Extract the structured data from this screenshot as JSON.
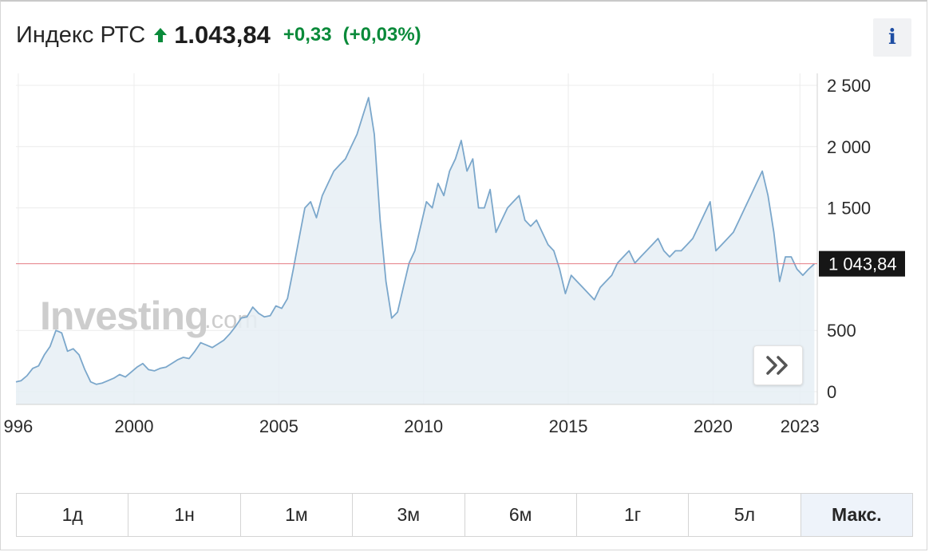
{
  "header": {
    "title": "Индекс РТС",
    "price": "1.043,84",
    "change": "+0,33",
    "change_pct": "(+0,03%)",
    "direction_icon": "arrow-up-icon",
    "up_color": "#0a8a3a"
  },
  "info_button": {
    "label": "i",
    "icon": "info-icon"
  },
  "expand_button": {
    "icon": "double-chevron-right-icon"
  },
  "watermark": {
    "main": "Investing",
    "domain": ".com"
  },
  "chart_data": {
    "type": "area",
    "x_ticks": [
      "996",
      "2000",
      "2005",
      "2010",
      "2015",
      "2020",
      "2023"
    ],
    "y_ticks": [
      0,
      500,
      1500,
      2000,
      2500
    ],
    "y_tick_labels": [
      "0",
      "500",
      "1 500",
      "2 000",
      "2 500"
    ],
    "ylim": [
      0,
      2600
    ],
    "xlim": [
      1995.92,
      2023.6
    ],
    "grid": true,
    "line_color": "#7ba7cb",
    "fill_color": "#e6eef5",
    "current_value": 1043.84,
    "current_value_label": "1 043,84",
    "current_line_color": "#e47d85",
    "series": [
      {
        "x": [
          1995.9,
          1996.1,
          1996.3,
          1996.5,
          1996.7,
          1996.9,
          1997.1,
          1997.3,
          1997.5,
          1997.7,
          1997.9,
          1998.1,
          1998.3,
          1998.5,
          1998.7,
          1998.9,
          1999.1,
          1999.3,
          1999.5,
          1999.7,
          1999.9,
          2000.1,
          2000.3,
          2000.5,
          2000.7,
          2000.9,
          2001.1,
          2001.3,
          2001.5,
          2001.7,
          2001.9,
          2002.1,
          2002.3,
          2002.5,
          2002.7,
          2002.9,
          2003.1,
          2003.3,
          2003.5,
          2003.7,
          2003.9,
          2004.1,
          2004.3,
          2004.5,
          2004.7,
          2004.9,
          2005.1,
          2005.3,
          2005.5,
          2005.7,
          2005.9,
          2006.1,
          2006.3,
          2006.5,
          2006.7,
          2006.9,
          2007.1,
          2007.3,
          2007.5,
          2007.7,
          2007.9,
          2008.1,
          2008.3,
          2008.5,
          2008.7,
          2008.9,
          2009.1,
          2009.3,
          2009.5,
          2009.7,
          2009.9,
          2010.1,
          2010.3,
          2010.5,
          2010.7,
          2010.9,
          2011.1,
          2011.3,
          2011.5,
          2011.7,
          2011.9,
          2012.1,
          2012.3,
          2012.5,
          2012.7,
          2012.9,
          2013.1,
          2013.3,
          2013.5,
          2013.7,
          2013.9,
          2014.1,
          2014.3,
          2014.5,
          2014.7,
          2014.9,
          2015.1,
          2015.3,
          2015.5,
          2015.7,
          2015.9,
          2016.1,
          2016.3,
          2016.5,
          2016.7,
          2016.9,
          2017.1,
          2017.3,
          2017.5,
          2017.7,
          2017.9,
          2018.1,
          2018.3,
          2018.5,
          2018.7,
          2018.9,
          2019.1,
          2019.3,
          2019.5,
          2019.7,
          2019.9,
          2020.1,
          2020.3,
          2020.5,
          2020.7,
          2020.9,
          2021.1,
          2021.3,
          2021.5,
          2021.7,
          2021.9,
          2022.1,
          2022.3,
          2022.5,
          2022.7,
          2022.9,
          2023.1,
          2023.3,
          2023.5
        ],
        "y": [
          80,
          90,
          130,
          190,
          210,
          300,
          370,
          500,
          480,
          330,
          350,
          300,
          180,
          80,
          60,
          70,
          90,
          110,
          140,
          120,
          160,
          200,
          230,
          180,
          170,
          190,
          200,
          230,
          260,
          280,
          270,
          330,
          400,
          380,
          360,
          390,
          420,
          470,
          530,
          600,
          610,
          690,
          640,
          610,
          620,
          700,
          680,
          760,
          1000,
          1250,
          1500,
          1550,
          1420,
          1600,
          1700,
          1800,
          1850,
          1900,
          2000,
          2100,
          2250,
          2400,
          2100,
          1400,
          900,
          600,
          650,
          850,
          1050,
          1150,
          1350,
          1550,
          1500,
          1700,
          1600,
          1800,
          1900,
          2050,
          1800,
          1900,
          1500,
          1500,
          1650,
          1300,
          1400,
          1500,
          1550,
          1600,
          1400,
          1350,
          1400,
          1300,
          1200,
          1150,
          1000,
          800,
          950,
          900,
          850,
          800,
          750,
          850,
          900,
          950,
          1050,
          1100,
          1150,
          1050,
          1100,
          1150,
          1200,
          1250,
          1150,
          1100,
          1150,
          1150,
          1200,
          1250,
          1350,
          1450,
          1550,
          1150,
          1200,
          1250,
          1300,
          1400,
          1500,
          1600,
          1700,
          1800,
          1600,
          1300,
          900,
          1100,
          1100,
          1000,
          950,
          1000,
          1043.84
        ]
      }
    ]
  },
  "ranges": {
    "items": [
      {
        "label": "1д",
        "active": false
      },
      {
        "label": "1н",
        "active": false
      },
      {
        "label": "1м",
        "active": false
      },
      {
        "label": "3м",
        "active": false
      },
      {
        "label": "6м",
        "active": false
      },
      {
        "label": "1г",
        "active": false
      },
      {
        "label": "5л",
        "active": false
      },
      {
        "label": "Макс.",
        "active": true
      }
    ]
  }
}
